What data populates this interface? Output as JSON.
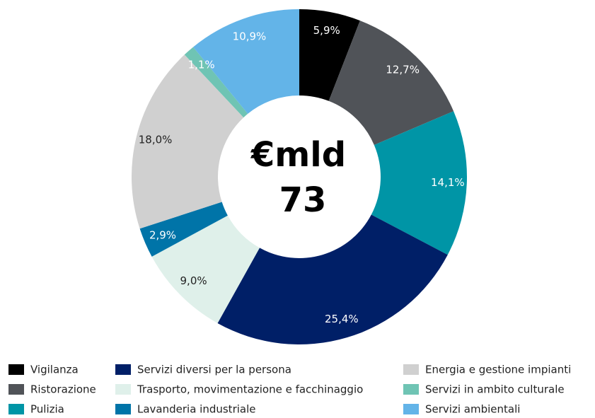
{
  "chart_data": {
    "type": "donut",
    "center_title": "€mld",
    "center_value": 73,
    "categories": [
      "Vigilanza",
      "Ristorazione",
      "Pulizia",
      "Servizi diversi per la persona",
      "Trasporto, movimentazione e facchinaggio",
      "Lavanderia industriale",
      "Energia e gestione impianti",
      "Servizi in ambito culturale",
      "Servizi ambientali"
    ],
    "values": [
      5.9,
      12.7,
      14.1,
      25.4,
      9.0,
      2.9,
      18.0,
      1.1,
      10.9
    ],
    "value_labels": [
      "5,9%",
      "12,7%",
      "14,1%",
      "25,4%",
      "9,0%",
      "2,9%",
      "18,0%",
      "1,1%",
      "10,9%"
    ],
    "colors": [
      "#000000",
      "#505358",
      "#0095a6",
      "#001f67",
      "#dff0ea",
      "#0074a8",
      "#d0d0d0",
      "#6fc4b4",
      "#63b4e8"
    ]
  }
}
